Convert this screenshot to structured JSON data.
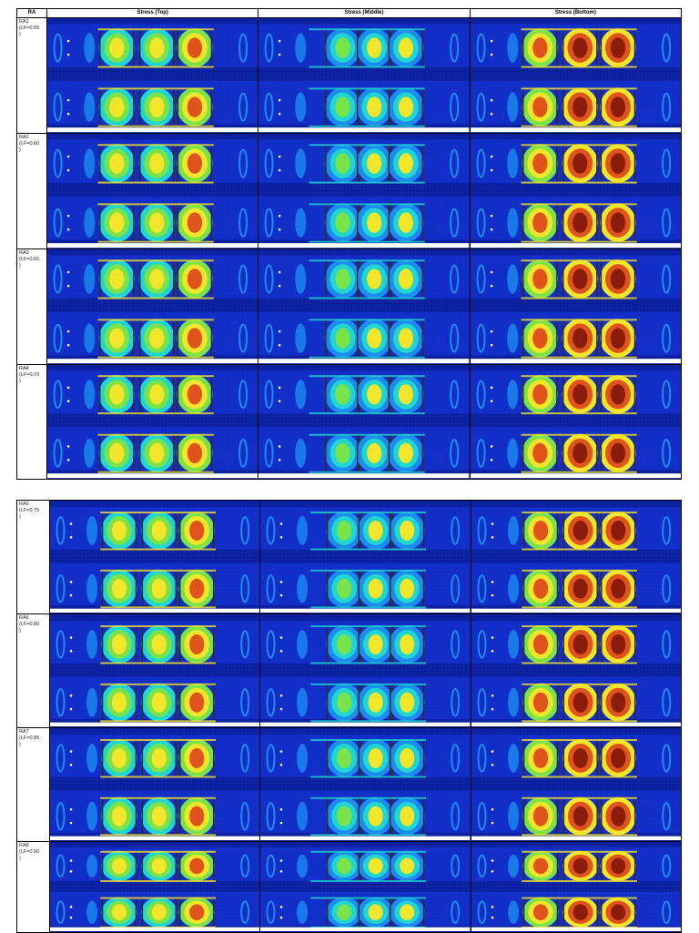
{
  "header": {
    "col_ra": "RA",
    "col_top": "Stress (Top)",
    "col_middle": "Stress (Middle)",
    "col_bottom": "Stress (Bottom)"
  },
  "rows_part1": [
    {
      "label": "RA1\n(LF=0.55\n)"
    },
    {
      "label": "RA2\n(LF=0.60\n)"
    },
    {
      "label": "RA3\n(LF=0.65\n)"
    },
    {
      "label": "RA4\n(LF=0.70\n)"
    }
  ],
  "rows_part2": [
    {
      "label": "RA5\n(LF=0.75\n)"
    },
    {
      "label": "RA6\n(LF=0.80\n)"
    },
    {
      "label": "RA7\n(LF=0.85\n)"
    },
    {
      "label": "RA8\n(LF=0.90\n)"
    }
  ],
  "colors": {
    "background": "#0a1f9e",
    "low": "#1535d8",
    "mid_low": "#1c8cf0",
    "mid": "#20d6d0",
    "mid_high": "#7be34a",
    "high": "#f2e52a",
    "peak": "#e0531c",
    "max": "#8a1c0c"
  }
}
